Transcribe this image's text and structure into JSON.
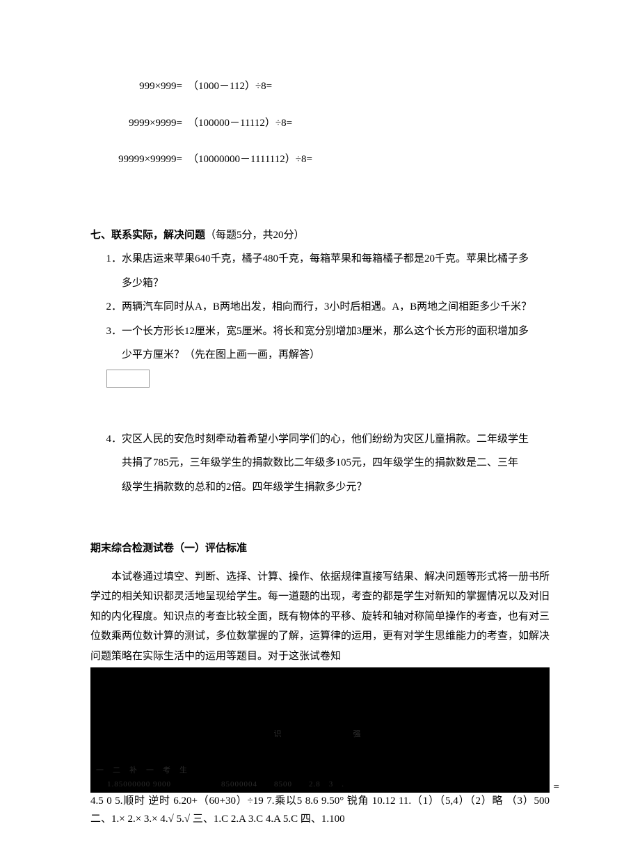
{
  "math": {
    "rows": [
      {
        "left": "999×999=",
        "right": "（1000－112）÷8="
      },
      {
        "left": "9999×9999=",
        "right": "（100000－11112）÷8="
      },
      {
        "left": "99999×99999=",
        "right": "（10000000－1111112）÷8="
      }
    ]
  },
  "section7": {
    "heading_bold": "七、联系实际，解决问题",
    "heading_paren": "（每题5分，共20分）",
    "p1_a": "1．水果店运来苹果640千克，橘子480千克，每箱苹果和每箱橘子都是20千克。苹果比橘子多",
    "p1_b": "多少箱？",
    "p2": "2．两辆汽车同时从A，B两地出发，相向而行，3小时后相遇。A，B两地之间相距多少千米？",
    "p3_a": "3．一个长方形长12厘米，宽5厘米。将长和宽分别增加3厘米，那么这个长方形的面积增加多",
    "p3_b": "少平方厘米？（先在图上画一画，再解答）",
    "p4_a": "4．灾区人民的安危时刻牵动着希望小学同学们的心，他们纷纷为灾区儿童捐款。二年级学生",
    "p4_b": "共捐了785元，三年级学生的捐款数比二年级多105元，四年级学生的捐款数是二、三年",
    "p4_c": "级学生捐款数的总和的2倍。四年级学生捐款多少元？"
  },
  "eval": {
    "heading": "期末综合检测试卷（一）评估标准",
    "para": "本试卷通过填空、判断、选择、计算、操作、依据规律直接写结果、解决问题等形式将一册书所学过的相关知识都灵活地呈现给学生。每一道题的出现，考查的都是学生对新知的掌握情况以及对旧知的内化程度。知识点的考查比较全面，既有物体的平移、旋转和轴对称简单操作的考查，也有对三位数乘两位数计算的测试，多位数掌握的了解，运算律的运用，更有对学生思维能力的考查，如解决问题策略在实际生活中的运用等题目。对于这张试卷知"
  },
  "dark": {
    "line1": "识　　　　　强",
    "line2": "一　二　补　一　考　生　",
    "line3": "1.85000000 9000　　　　　　85000004　　8500　　2.8　3　.",
    "eq": "="
  },
  "answers": "4.5 0 5.顺时 逆时 6.20+（60+30）÷19 7.乘以5 8.6 9.50° 锐角 10.12 11.（1）（5,4）（2）略 （3）500 二、1.× 2.× 3.× 4.√ 5.√ 三、1.C 2.A 3.C 4.A 5.C 四、1.100"
}
